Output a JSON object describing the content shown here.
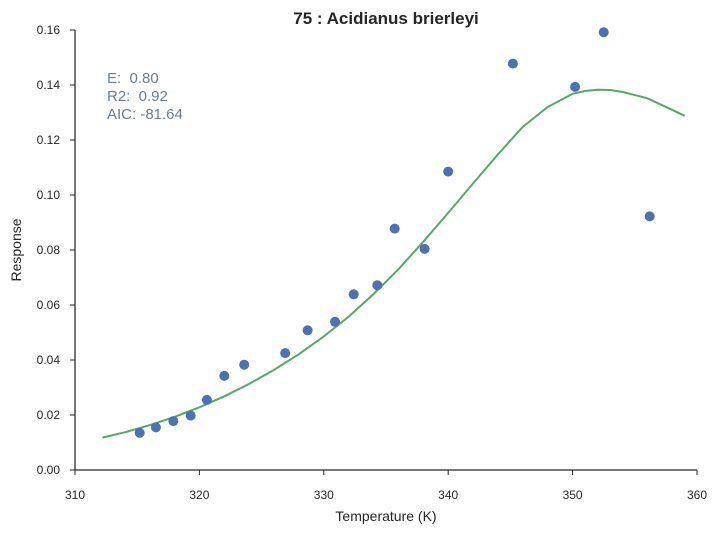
{
  "chart_data": {
    "type": "scatter",
    "title": "75 : Acidianus brierleyi",
    "xlabel": "Temperature (K)",
    "ylabel": "Response",
    "xlim": [
      310,
      360
    ],
    "ylim": [
      0.0,
      0.16
    ],
    "x_ticks": [
      "310",
      "320",
      "330",
      "340",
      "350",
      "360"
    ],
    "y_ticks": [
      "0.00",
      "0.02",
      "0.04",
      "0.06",
      "0.08",
      "0.10",
      "0.12",
      "0.14",
      "0.16"
    ],
    "grid": false,
    "annotations": [
      "E:  0.80",
      "R2:  0.92",
      "AIC: -81.64"
    ],
    "colors": {
      "points": "#4c72b0",
      "fit": "#55a868",
      "annotation": "#6b7c93"
    },
    "series": [
      {
        "kind": "points",
        "x": [
          315.2,
          316.5,
          317.9,
          319.3,
          320.6,
          322.0,
          323.6,
          326.9,
          328.7,
          330.9,
          332.4,
          334.3,
          335.7,
          338.1,
          340.0,
          345.2,
          350.2,
          352.5,
          356.2
        ],
        "y": [
          0.0135,
          0.0155,
          0.0178,
          0.0198,
          0.0255,
          0.0342,
          0.0383,
          0.0425,
          0.0508,
          0.0539,
          0.0639,
          0.0672,
          0.0878,
          0.0804,
          0.1085,
          0.1478,
          0.1393,
          0.1592,
          0.0922
        ]
      },
      {
        "kind": "fit-line",
        "x": [
          312.2,
          314,
          316,
          318,
          320,
          322,
          324,
          326,
          328,
          330,
          332,
          334,
          336,
          338,
          340,
          342,
          344,
          346,
          348,
          350,
          351,
          352,
          353,
          354,
          356,
          358,
          359
        ],
        "y": [
          0.0118,
          0.0137,
          0.0163,
          0.0193,
          0.0228,
          0.0268,
          0.0313,
          0.0364,
          0.0421,
          0.0486,
          0.0558,
          0.064,
          0.073,
          0.083,
          0.0935,
          0.1042,
          0.1148,
          0.1248,
          0.132,
          0.1368,
          0.1378,
          0.1383,
          0.1382,
          0.1375,
          0.1352,
          0.131,
          0.1288
        ]
      }
    ]
  }
}
